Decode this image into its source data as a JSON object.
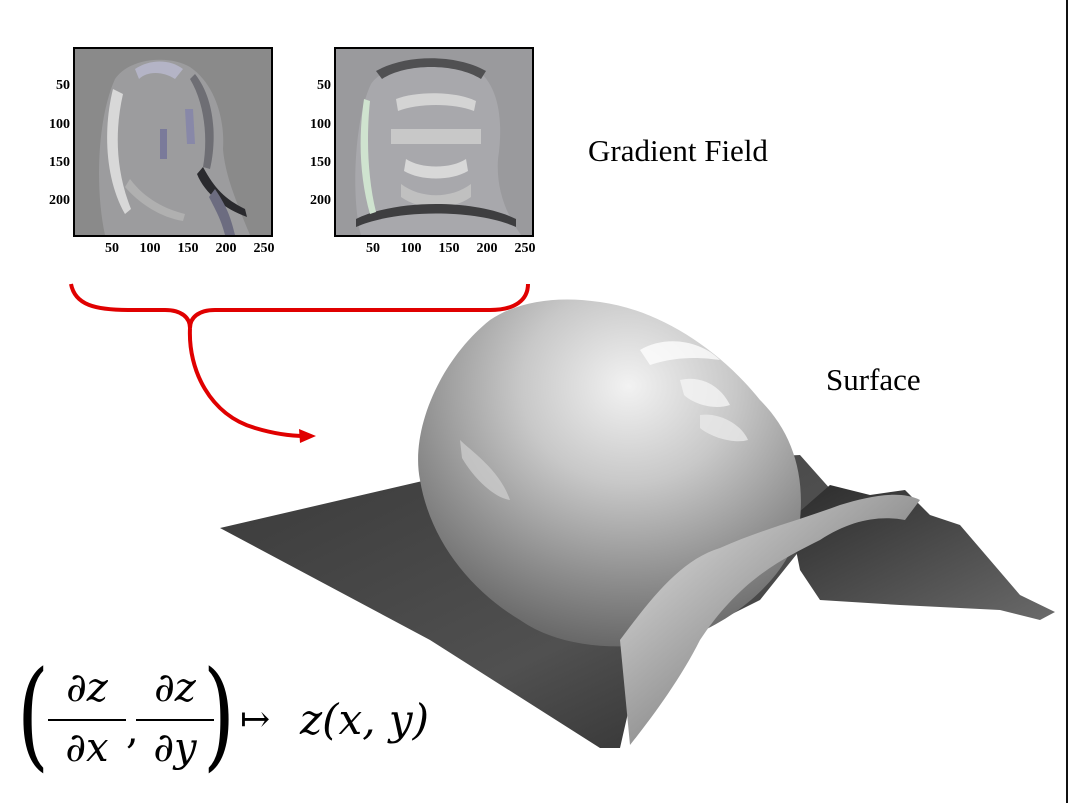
{
  "left_plot": {
    "y_ticks": [
      "50",
      "100",
      "150",
      "200"
    ],
    "x_ticks": [
      "50",
      "100",
      "150",
      "200",
      "250"
    ]
  },
  "right_plot": {
    "y_ticks": [
      "50",
      "100",
      "150",
      "200"
    ],
    "x_ticks": [
      "50",
      "100",
      "150",
      "200",
      "250"
    ]
  },
  "labels": {
    "gradient_field": "Gradient Field",
    "surface": "Surface"
  },
  "equation": {
    "num_x": "∂z",
    "den_x": "∂x",
    "num_y": "∂z",
    "den_y": "∂y",
    "mapsto": "↦",
    "rhs": "z(x, y)"
  },
  "colors": {
    "arrow": "#e00000",
    "plot_left_bg": "#8a8a8a",
    "plot_right_bg": "#9a9a9d"
  }
}
